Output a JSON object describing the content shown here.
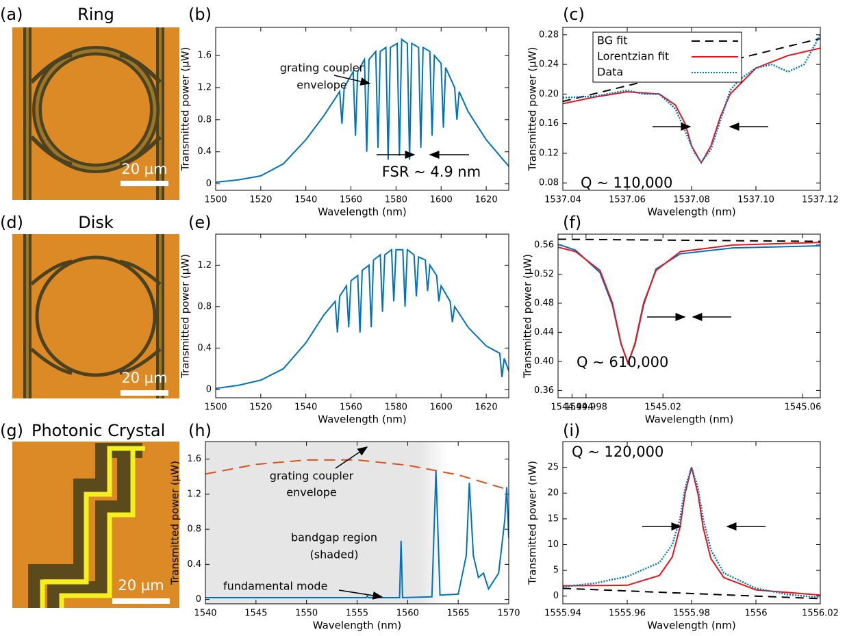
{
  "images": [
    {
      "panel_label": "(a)",
      "title": "Ring",
      "scale_bar": "20 µm"
    },
    {
      "panel_label": "(d)",
      "title": "Disk",
      "scale_bar": "20 µm"
    },
    {
      "panel_label": "(g)",
      "title": "Photonic Crystal",
      "scale_bar": "20 µm"
    }
  ],
  "chart_data": [
    {
      "type": "line",
      "panel_label": "(b)",
      "xlabel": "Wavelength (nm)",
      "ylabel": "Transmitted power (µW)",
      "xlim": [
        1500,
        1630
      ],
      "ylim": [
        -0.08,
        1.95
      ],
      "xticks": [
        1500,
        1520,
        1540,
        1560,
        1580,
        1600,
        1620
      ],
      "yticks": [
        0,
        0.4,
        0.8,
        1.2,
        1.6
      ],
      "annotations": [
        {
          "lines": [
            "grating coupler",
            "envelope"
          ]
        },
        {
          "lines": [
            "FSR ~ 4.9 nm"
          ]
        }
      ],
      "series": [
        {
          "color": "#0072bd",
          "style": "solid",
          "x": [
            1500,
            1510,
            1520,
            1530,
            1540,
            1548,
            1555,
            1556,
            1557,
            1561,
            1562,
            1563,
            1566,
            1567,
            1568,
            1571,
            1572,
            1573,
            1575.5,
            1576.5,
            1577.5,
            1580.5,
            1581.5,
            1582.5,
            1585,
            1586,
            1587,
            1590,
            1591,
            1592,
            1595,
            1596,
            1597,
            1600,
            1601,
            1602,
            1606,
            1607,
            1608,
            1612,
            1620,
            1630
          ],
          "values": [
            0.02,
            0.05,
            0.1,
            0.25,
            0.55,
            0.85,
            1.15,
            0.75,
            1.2,
            1.4,
            0.6,
            1.4,
            1.55,
            0.4,
            1.55,
            1.65,
            0.45,
            1.65,
            1.7,
            0.3,
            1.7,
            1.75,
            0.35,
            1.8,
            1.75,
            0.3,
            1.75,
            1.7,
            0.45,
            1.7,
            1.65,
            0.6,
            1.6,
            1.5,
            0.7,
            1.45,
            1.2,
            0.8,
            1.15,
            0.9,
            0.55,
            0.22
          ]
        }
      ]
    },
    {
      "type": "line",
      "panel_label": "(c)",
      "xlabel": "Wavelength (nm)",
      "ylabel": "Transmitted power (µW)",
      "xlim": [
        1537.04,
        1537.12
      ],
      "ylim": [
        0.07,
        0.29
      ],
      "xticks": [
        1537.04,
        1537.06,
        1537.08,
        {
          "value": 1537.1,
          "label": "1537.10"
        },
        1537.12
      ],
      "yticks": [
        0.08,
        0.12,
        0.16,
        {
          "value": 0.2,
          "label": "0.20"
        },
        0.24,
        0.28
      ],
      "legend": "upper left",
      "annotations": [
        {
          "lines": [
            "Q ~ 110,000"
          ]
        }
      ],
      "series": [
        {
          "name": "BG fit",
          "color": "#000000",
          "style": "dashed",
          "x": [
            1537.04,
            1537.12
          ],
          "values": [
            0.19,
            0.275
          ]
        },
        {
          "name": "Lorentzian fit",
          "color": "#e8141c",
          "style": "solid",
          "x": [
            1537.04,
            1537.05,
            1537.06,
            1537.07,
            1537.075,
            1537.078,
            1537.08,
            1537.083,
            1537.086,
            1537.089,
            1537.092,
            1537.1,
            1537.11,
            1537.12
          ],
          "values": [
            0.187,
            0.196,
            0.203,
            0.2,
            0.185,
            0.16,
            0.13,
            0.107,
            0.13,
            0.17,
            0.2,
            0.235,
            0.252,
            0.262
          ]
        },
        {
          "name": "Data",
          "color": "#0072bd",
          "style": "dotted",
          "x": [
            1537.04,
            1537.05,
            1537.06,
            1537.065,
            1537.07,
            1537.075,
            1537.078,
            1537.081,
            1537.083,
            1537.086,
            1537.089,
            1537.092,
            1537.095,
            1537.1,
            1537.105,
            1537.11,
            1537.115,
            1537.12
          ],
          "values": [
            0.195,
            0.197,
            0.205,
            0.2,
            0.2,
            0.18,
            0.15,
            0.12,
            0.108,
            0.125,
            0.165,
            0.205,
            0.22,
            0.235,
            0.24,
            0.23,
            0.24,
            0.28
          ]
        }
      ]
    },
    {
      "type": "line",
      "panel_label": "(e)",
      "xlabel": "Wavelength (nm)",
      "ylabel": "Transmitted power (µW)",
      "xlim": [
        1500,
        1630
      ],
      "ylim": [
        -0.08,
        1.5
      ],
      "xticks": [
        1500,
        1520,
        1540,
        1560,
        1580,
        1600,
        1620
      ],
      "yticks": [
        0,
        0.4,
        0.8,
        1.2
      ],
      "series": [
        {
          "color": "#0072bd",
          "style": "solid",
          "x": [
            1500,
            1510,
            1520,
            1530,
            1540,
            1548,
            1553,
            1554,
            1555,
            1558,
            1559,
            1560,
            1563,
            1564,
            1565,
            1568,
            1569,
            1570,
            1573,
            1574,
            1575,
            1578,
            1579,
            1580,
            1583,
            1584,
            1585,
            1588,
            1589,
            1590,
            1593,
            1594,
            1595,
            1598,
            1599,
            1600,
            1604,
            1605,
            1606,
            1612,
            1620,
            1626,
            1627,
            1628,
            1630
          ],
          "values": [
            0.01,
            0.04,
            0.09,
            0.2,
            0.45,
            0.72,
            0.85,
            0.55,
            0.9,
            1.0,
            0.6,
            1.05,
            1.1,
            0.55,
            1.15,
            1.2,
            0.6,
            1.25,
            1.3,
            0.75,
            1.3,
            1.35,
            0.85,
            1.35,
            1.35,
            0.8,
            1.35,
            1.3,
            0.9,
            1.28,
            1.25,
            0.95,
            1.2,
            1.1,
            0.85,
            1.0,
            0.85,
            0.65,
            0.8,
            0.6,
            0.42,
            0.35,
            0.12,
            0.3,
            0.18
          ]
        }
      ]
    },
    {
      "type": "line",
      "panel_label": "(f)",
      "xlabel": "Wavelength (nm)",
      "ylabel": "Transmitted power (µW)",
      "xlim": [
        1544.99,
        1545.065
      ],
      "ylim": [
        0.35,
        0.575
      ],
      "xticks": [
        1544.994,
        1544.998,
        1545.02,
        1545.06
      ],
      "yticks": [
        0.36,
        {
          "value": 0.4,
          "label": "0.40"
        },
        0.44,
        0.48,
        0.52,
        0.56
      ],
      "annotations": [
        {
          "lines": [
            "Q ~ 610,000"
          ]
        }
      ],
      "series": [
        {
          "color": "#000000",
          "style": "dashed",
          "x": [
            1544.99,
            1545.065
          ],
          "values": [
            0.568,
            0.565
          ]
        },
        {
          "color": "#0072bd",
          "style": "solid",
          "x": [
            1544.99,
            1544.995,
            1545.002,
            1545.0055,
            1545.008,
            1545.01,
            1545.012,
            1545.0145,
            1545.018,
            1545.025,
            1545.04,
            1545.065
          ],
          "values": [
            0.561,
            0.553,
            0.522,
            0.478,
            0.424,
            0.398,
            0.423,
            0.478,
            0.527,
            0.548,
            0.556,
            0.559
          ]
        },
        {
          "color": "#e8141c",
          "style": "solid",
          "x": [
            1544.99,
            1544.995,
            1545.002,
            1545.0055,
            1545.008,
            1545.01,
            1545.012,
            1545.0145,
            1545.018,
            1545.025,
            1545.04,
            1545.065
          ],
          "values": [
            0.557,
            0.551,
            0.525,
            0.481,
            0.425,
            0.397,
            0.425,
            0.481,
            0.525,
            0.551,
            0.56,
            0.5636
          ]
        }
      ]
    },
    {
      "type": "line",
      "panel_label": "(h)",
      "xlabel": "Wavelength (nm)",
      "ylabel": "Transmitted power (µW)",
      "xlim": [
        1540,
        1570
      ],
      "ylim": [
        -0.05,
        1.8
      ],
      "xticks": [
        1540,
        1545,
        1550,
        1555,
        1560,
        1565,
        1570
      ],
      "yticks": [
        0,
        0.4,
        0.8,
        1.2,
        1.6
      ],
      "shaded_xlim": [
        1540,
        1564
      ],
      "annotations": [
        {
          "lines": [
            "grating coupler",
            "envelope"
          ]
        },
        {
          "lines": [
            "bandgap region",
            "(shaded)"
          ]
        },
        {
          "lines": [
            "fundamental mode"
          ]
        }
      ],
      "series": [
        {
          "color": "#d95319",
          "style": "longdash",
          "x": [
            1540,
            1545,
            1550,
            1555,
            1560,
            1565,
            1570
          ],
          "values": [
            1.43,
            1.54,
            1.59,
            1.59,
            1.53,
            1.42,
            1.25
          ]
        },
        {
          "color": "#0072bd",
          "style": "solid",
          "x": [
            1540,
            1555.9,
            1556,
            1556.1,
            1559.2,
            1559.35,
            1559.5,
            1562.4,
            1562.8,
            1563.2,
            1565,
            1565.8,
            1566.1,
            1566.5,
            1567,
            1567.5,
            1568,
            1569,
            1569.6,
            1569.8,
            1570
          ],
          "values": [
            0.02,
            0.02,
            0.04,
            0.02,
            0.02,
            0.67,
            0.02,
            0.03,
            1.46,
            0.05,
            0.06,
            0.5,
            1.33,
            0.5,
            0.25,
            0.3,
            0.12,
            0.3,
            0.9,
            1.28,
            0.7
          ]
        }
      ]
    },
    {
      "type": "line",
      "panel_label": "(i)",
      "xlabel": "Wavelength (nm)",
      "ylabel": "Transmitted power (nW)",
      "xlim": [
        1555.94,
        1556.02
      ],
      "ylim": [
        -1.5,
        30
      ],
      "xticks": [
        1555.94,
        1555.96,
        1555.98,
        1556,
        1556.02
      ],
      "yticks": [
        0,
        5,
        10,
        15,
        20,
        25
      ],
      "annotations": [
        {
          "lines": [
            "Q ~ 120,000"
          ]
        }
      ],
      "series": [
        {
          "color": "#000000",
          "style": "dashed",
          "x": [
            1555.94,
            1556.02
          ],
          "values": [
            1.5,
            -0.5
          ]
        },
        {
          "color": "#e8141c",
          "style": "solid",
          "x": [
            1555.94,
            1555.96,
            1555.97,
            1555.974,
            1555.9764,
            1555.978,
            1555.98,
            1555.982,
            1555.9836,
            1555.986,
            1555.99,
            1556,
            1556.02
          ],
          "values": [
            2.0,
            2.1,
            4.0,
            7.6,
            13.4,
            20,
            25,
            19.8,
            13.3,
            7.3,
            3.6,
            1.2,
            0.2
          ]
        },
        {
          "color": "#0072bd",
          "style": "dotted",
          "x": [
            1555.94,
            1555.95,
            1555.96,
            1555.97,
            1555.974,
            1555.9764,
            1555.978,
            1555.98,
            1555.982,
            1555.9836,
            1555.986,
            1555.99,
            1556,
            1556.01,
            1556.02
          ],
          "values": [
            1.8,
            2.5,
            3.8,
            6.5,
            10,
            15,
            21,
            25,
            21,
            15,
            9,
            4.5,
            1.5,
            0.3,
            -0.3
          ]
        }
      ]
    }
  ]
}
